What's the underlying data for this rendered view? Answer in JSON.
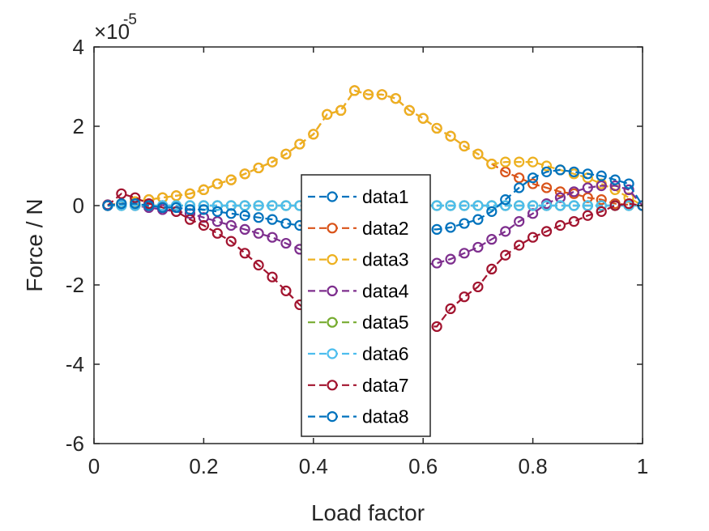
{
  "chart_data": {
    "type": "line",
    "xlabel": "Load factor",
    "ylabel": "Force / N",
    "exponent_base": "×10",
    "exponent_power": "-5",
    "xlim": [
      0,
      1
    ],
    "ylim": [
      -6,
      4
    ],
    "xticks": [
      "0",
      "0.2",
      "0.4",
      "0.6",
      "0.8",
      "1"
    ],
    "yticks": [
      "-6",
      "-4",
      "-2",
      "0",
      "2",
      "4"
    ],
    "grid": false,
    "legend": "center-bottom",
    "x": [
      0.025,
      0.05,
      0.075,
      0.1,
      0.125,
      0.15,
      0.175,
      0.2,
      0.225,
      0.25,
      0.275,
      0.3,
      0.325,
      0.35,
      0.375,
      0.4,
      0.425,
      0.45,
      0.475,
      0.5,
      0.525,
      0.55,
      0.575,
      0.6,
      0.625,
      0.65,
      0.675,
      0.7,
      0.725,
      0.75,
      0.775,
      0.8,
      0.825,
      0.85,
      0.875,
      0.9,
      0.925,
      0.95,
      0.975,
      1.0
    ],
    "series": [
      {
        "name": "data1",
        "color": "#0072BD",
        "values": [
          0,
          0,
          0,
          0,
          0,
          0,
          0,
          0,
          0,
          0,
          0,
          0,
          0,
          0,
          0,
          0,
          0,
          0,
          0,
          0,
          0,
          0,
          0,
          0,
          0,
          0,
          0,
          0,
          0,
          0,
          0,
          0,
          0,
          0,
          0,
          0,
          0,
          0,
          0,
          0
        ]
      },
      {
        "name": "data2",
        "color": "#D95319",
        "values": [
          0.02,
          0.05,
          0.1,
          0.15,
          0.2,
          0.25,
          0.3,
          0.4,
          0.55,
          0.65,
          0.8,
          0.95,
          1.1,
          1.3,
          1.55,
          1.8,
          2.3,
          2.4,
          2.9,
          2.8,
          2.8,
          2.7,
          2.4,
          2.2,
          1.95,
          1.75,
          1.5,
          1.3,
          1.05,
          0.85,
          0.7,
          0.55,
          0.45,
          0.35,
          0.3,
          0.2,
          0.15,
          0.05,
          0.02,
          0
        ]
      },
      {
        "name": "data3",
        "color": "#EDB120",
        "values": [
          0.02,
          0.05,
          0.1,
          0.15,
          0.2,
          0.25,
          0.3,
          0.4,
          0.55,
          0.65,
          0.8,
          0.95,
          1.1,
          1.3,
          1.55,
          1.8,
          2.3,
          2.4,
          2.9,
          2.8,
          2.8,
          2.7,
          2.4,
          2.2,
          1.95,
          1.75,
          1.5,
          1.3,
          1.05,
          1.1,
          1.1,
          1.1,
          1.0,
          0.9,
          0.8,
          0.7,
          0.55,
          0.4,
          0.2,
          0
        ]
      },
      {
        "name": "data4",
        "color": "#7E2F8E",
        "values": [
          0.02,
          0.02,
          0,
          -0.05,
          -0.1,
          -0.15,
          -0.2,
          -0.3,
          -0.4,
          -0.5,
          -0.6,
          -0.7,
          -0.8,
          -0.95,
          -1.1,
          -1.25,
          -1.4,
          -1.5,
          -1.6,
          -1.65,
          -1.65,
          -1.6,
          -1.55,
          -1.5,
          -1.45,
          -1.35,
          -1.2,
          -1.05,
          -0.85,
          -0.65,
          -0.4,
          -0.2,
          0.05,
          0.2,
          0.35,
          0.45,
          0.5,
          0.5,
          0.4,
          0
        ]
      },
      {
        "name": "data5",
        "color": "#77AC30",
        "values": [
          0,
          0,
          0,
          0,
          0,
          0,
          0,
          0,
          0,
          0,
          0,
          0,
          0,
          0,
          0,
          0,
          0,
          0,
          0,
          0,
          0,
          0,
          0,
          0,
          0,
          0,
          0,
          0,
          0,
          0,
          0,
          0,
          0,
          0,
          0,
          0,
          0,
          0,
          0,
          0
        ]
      },
      {
        "name": "data6",
        "color": "#4DBEEE",
        "values": [
          0,
          0,
          0,
          0,
          0,
          0,
          0,
          0,
          0,
          0,
          0,
          0,
          0,
          0,
          0,
          0,
          0,
          0,
          0,
          0,
          0,
          0,
          0,
          0,
          0,
          0,
          0,
          0,
          0,
          0,
          0,
          0,
          0,
          0,
          0,
          0,
          0,
          0,
          0,
          0
        ]
      },
      {
        "name": "data7",
        "color": "#A2142F",
        "values": [
          0,
          0.3,
          0.2,
          0.05,
          -0.05,
          -0.15,
          -0.35,
          -0.5,
          -0.7,
          -0.9,
          -1.2,
          -1.5,
          -1.8,
          -2.15,
          -2.5,
          -2.8,
          -3.1,
          -3.4,
          -3.6,
          -3.55,
          -3.5,
          -3.4,
          -3.25,
          -3.05,
          -3.05,
          -2.6,
          -2.3,
          -2.05,
          -1.6,
          -1.25,
          -1.0,
          -0.8,
          -0.65,
          -0.5,
          -0.4,
          -0.25,
          -0.15,
          0,
          0.05,
          0
        ]
      },
      {
        "name": "data8",
        "color": "#0072BD",
        "values": [
          0,
          0.05,
          0.05,
          0,
          -0.05,
          -0.05,
          -0.1,
          -0.1,
          -0.15,
          -0.2,
          -0.25,
          -0.3,
          -0.35,
          -0.45,
          -0.5,
          -0.55,
          -0.6,
          -0.65,
          -0.65,
          -0.7,
          -0.7,
          -0.7,
          -0.65,
          -0.6,
          -0.6,
          -0.55,
          -0.45,
          -0.35,
          -0.15,
          0.15,
          0.45,
          0.7,
          0.85,
          0.9,
          0.85,
          0.8,
          0.75,
          0.65,
          0.55,
          0
        ]
      }
    ]
  }
}
